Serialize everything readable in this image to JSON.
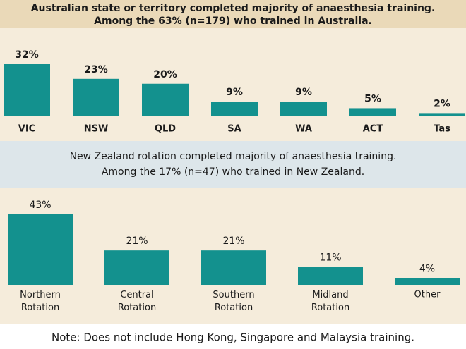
{
  "chart_data": [
    {
      "type": "bar",
      "title": [
        "Australian state or territory completed majority of anaesthesia training.",
        "Among the 63% (n=179) who trained in Australia."
      ],
      "categories": [
        "VIC",
        "NSW",
        "QLD",
        "SA",
        "WA",
        "ACT",
        "Tas"
      ],
      "values": [
        32,
        23,
        20,
        9,
        9,
        5,
        2
      ],
      "value_labels": [
        "32%",
        "23%",
        "20%",
        "9%",
        "9%",
        "5%",
        "2%"
      ],
      "color": "#13918e",
      "ylim": [
        0,
        32
      ]
    },
    {
      "type": "bar",
      "title": [
        "New Zealand rotation completed majority of anaesthesia training.",
        "Among the 17% (n=47) who trained in New Zealand."
      ],
      "categories": [
        "Northern Rotation",
        "Central Rotation",
        "Southern Rotation",
        "Midland Rotation",
        "Other"
      ],
      "values": [
        43,
        21,
        21,
        11,
        4
      ],
      "value_labels": [
        "43%",
        "21%",
        "21%",
        "11%",
        "4%"
      ],
      "color": "#13918e",
      "ylim": [
        0,
        43
      ]
    }
  ],
  "note": "Note: Does not include Hong Kong, Singapore and Malaysia training."
}
